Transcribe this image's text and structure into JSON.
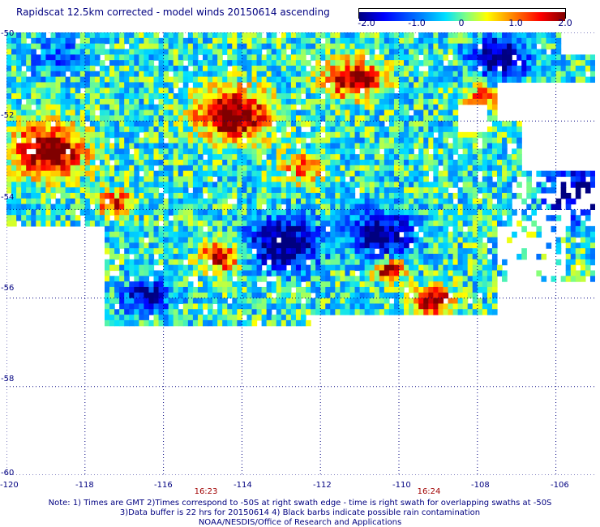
{
  "title": "Rapidscat 12.5km corrected - model winds 20150614 ascending",
  "colorbar": {
    "labels": [
      "-2.0",
      "-1.0",
      "0",
      "1.0",
      "2.0"
    ],
    "values": [
      -2.0,
      -1.0,
      0,
      1.0,
      2.0
    ],
    "range": [
      -2.0,
      2.0
    ]
  },
  "map": {
    "lon_range": [
      -120,
      -105
    ],
    "lat_range": [
      -60,
      -50
    ],
    "y_tick_labels": [
      "-50",
      "-52",
      "-54",
      "-56",
      "-58",
      "-60"
    ],
    "x_tick_labels": [
      "-120",
      "-118",
      "-116",
      "-114",
      "-112",
      "-110",
      "-108",
      "-106"
    ],
    "grid": "dotted",
    "cell_size_deg": 0.125
  },
  "time_labels": [
    {
      "text": "16:23",
      "lon": -115.1
    },
    {
      "text": "16:24",
      "lon": -109.6
    }
  ],
  "notes": [
    "Note: 1) Times are GMT 2)Times correspond to -50S at right swath edge - time is right swath for overlapping swaths at -50S",
    "3)Data buffer is 22 hrs for 20150614 4) Black barbs indicate possible rain contamination",
    "NOAA/NESDIS/Office of Research and Applications"
  ]
}
